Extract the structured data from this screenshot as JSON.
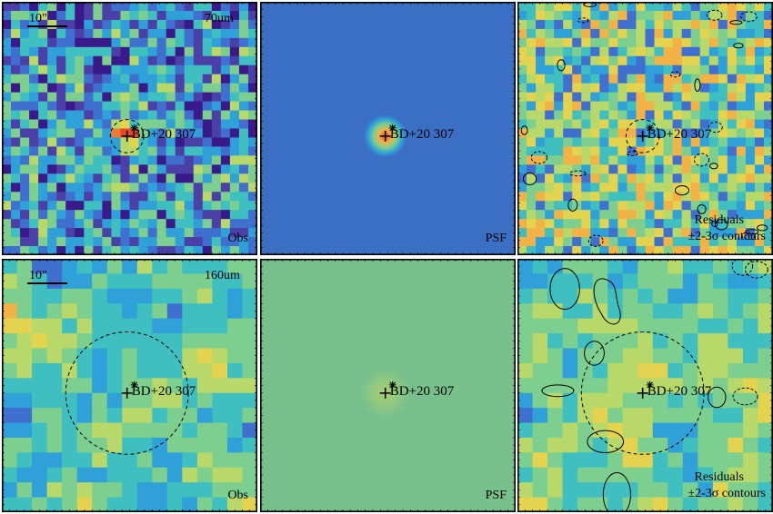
{
  "figure": {
    "panels": [
      {
        "id": "obs-70",
        "kind": "obs",
        "source_label": "BD+20 307",
        "band_label": "70um",
        "corner_label": "Obs",
        "scale_label": "10\"",
        "seed": 11,
        "res": 28,
        "blob_strength": 0.55,
        "blob_sigma": 1.3,
        "noise_scale": 0.3,
        "base": 0.28,
        "show_circle": true,
        "circle_r_frac": 0.065
      },
      {
        "id": "psf-70",
        "kind": "psf",
        "source_label": "BD+20 307",
        "corner_label": "PSF",
        "bg_color": "#3b6fc4",
        "blob_sigma_frac": 0.035,
        "show_circle": false
      },
      {
        "id": "resid-70",
        "kind": "resid",
        "source_label": "BD+20 307",
        "corner_lines": [
          "Residuals",
          "±2-3σ contours"
        ],
        "seed": 23,
        "res": 28,
        "noise_scale": 0.32,
        "base": 0.52,
        "show_circle": true,
        "circle_r_frac": 0.065
      },
      {
        "id": "obs-160",
        "kind": "obs",
        "source_label": "BD+20 307",
        "band_label": "160um",
        "corner_label": "Obs",
        "scale_label": "10\"",
        "seed": 37,
        "res": 17,
        "blob_strength": 0.05,
        "blob_sigma": 1.0,
        "noise_scale": 0.3,
        "base": 0.45,
        "show_circle": true,
        "circle_r_frac": 0.12
      },
      {
        "id": "psf-160",
        "kind": "psf",
        "source_label": "BD+20 307",
        "corner_label": "PSF",
        "bg_color": "#78c08b",
        "blob_sigma_frac": 0.04,
        "show_circle": false
      },
      {
        "id": "resid-160",
        "kind": "resid",
        "source_label": "BD+20 307",
        "corner_lines": [
          "Residuals",
          "±2-3σ contours"
        ],
        "seed": 53,
        "res": 17,
        "noise_scale": 0.3,
        "base": 0.5,
        "show_circle": true,
        "circle_r_frac": 0.12
      }
    ],
    "colormap": [
      "#3a1a8a",
      "#4b3fa8",
      "#3f6fcf",
      "#2fa0d8",
      "#3fbfc0",
      "#7ccf8e",
      "#b8d86a",
      "#e4d34f",
      "#f2b245",
      "#ef7a32",
      "#e8452b"
    ]
  }
}
